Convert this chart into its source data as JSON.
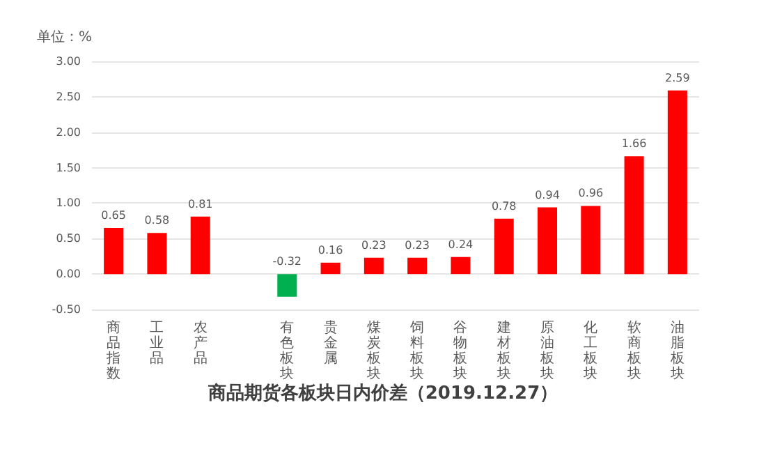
{
  "chart_data": {
    "type": "bar",
    "title": "商品期货各板块日内价差（2019.12.27）",
    "ylabel": "单位：%",
    "categories": [
      "商品指数",
      "工业品",
      "农产品",
      null,
      "有色板块",
      "贵金属",
      "煤炭板块",
      "饲料板块",
      "谷物板块",
      "建材板块",
      "原油板块",
      "化工板块",
      "软商板块",
      "油脂板块"
    ],
    "values": [
      0.65,
      0.58,
      0.81,
      null,
      -0.32,
      0.16,
      0.23,
      0.23,
      0.24,
      0.78,
      0.94,
      0.96,
      1.66,
      2.59
    ],
    "colors": [
      "#ff0000",
      "#ff0000",
      "#ff0000",
      "#ff0000",
      "#00b050",
      "#ff0000",
      "#ff0000",
      "#ff0000",
      "#ff0000",
      "#ff0000",
      "#ff0000",
      "#ff0000",
      "#ff0000",
      "#ff0000"
    ],
    "ylim": [
      -0.5,
      3
    ],
    "yticks": [
      {
        "value": -0.5,
        "label": "-0.50"
      },
      {
        "value": 0,
        "label": "0.00"
      },
      {
        "value": 0.5,
        "label": "0.50"
      },
      {
        "value": 1,
        "label": "1.00"
      },
      {
        "value": 1.5,
        "label": "1.50"
      },
      {
        "value": 2,
        "label": "2.00"
      },
      {
        "value": 2.5,
        "label": "2.50"
      },
      {
        "value": 3,
        "label": "3.00"
      }
    ],
    "grid": "y",
    "data_labels": true
  }
}
